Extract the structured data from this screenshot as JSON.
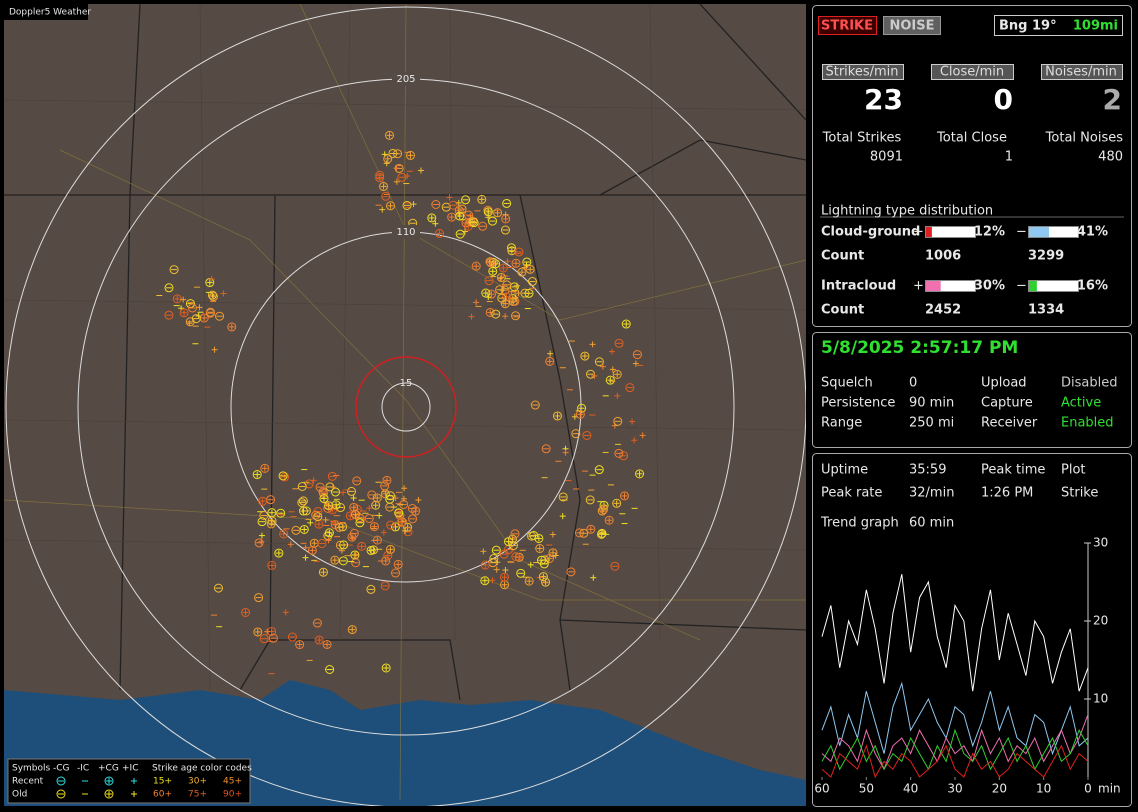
{
  "map": {
    "title": "Doppler5 Weather",
    "range_labels": [
      "205",
      "110",
      "15"
    ],
    "legend": {
      "symbols_label": "Symbols",
      "types": [
        "-CG",
        "-IC",
        "+CG",
        "+IC"
      ],
      "age_title": "Strike age color codes",
      "recent_label": "Recent",
      "old_label": "Old",
      "recent_ages": [
        "15+",
        "30+",
        "45+"
      ],
      "old_ages": [
        "60+",
        "75+",
        "90+"
      ]
    }
  },
  "status": {
    "strike": "STRIKE",
    "noise": "NOISE",
    "bearing": "Bng 19°",
    "distance": "109mi"
  },
  "rates": {
    "headers": [
      "Strikes/min",
      "Close/min",
      "Noises/min"
    ],
    "values": [
      23,
      0,
      2
    ],
    "total_labels": [
      "Total Strikes",
      "Total Close",
      "Total Noises"
    ],
    "totals": [
      8091,
      1,
      480
    ]
  },
  "distribution": {
    "title": "Lightning type distribution",
    "rows": [
      {
        "label": "Cloud-ground",
        "plus_sign": "+",
        "plus": 12,
        "plus_label": "12%",
        "plus_color": "#e02020",
        "minus_sign": "−",
        "minus": 41,
        "minus_label": "41%",
        "minus_color": "#8fc8f0",
        "count_label": "Count",
        "plus_count": 1006,
        "minus_count": 3299
      },
      {
        "label": "Intracloud",
        "plus_sign": "+",
        "plus": 30,
        "plus_label": "30%",
        "plus_color": "#f070b0",
        "minus_sign": "−",
        "minus": 16,
        "minus_label": "16%",
        "minus_color": "#30d030",
        "count_label": "Count",
        "plus_count": 2452,
        "minus_count": 1334
      }
    ]
  },
  "session": {
    "datetime": "5/8/2025 2:57:17 PM",
    "rows": [
      [
        "Squelch",
        "0",
        "Upload",
        "Disabled"
      ],
      [
        "Persistence",
        "90 min",
        "Capture",
        "Active"
      ],
      [
        "Range",
        "250 mi",
        "Receiver",
        "Enabled"
      ]
    ]
  },
  "stats": {
    "items": [
      {
        "label": "Uptime",
        "value": "35:59"
      },
      {
        "label": "Peak time",
        "value": "1:26 PM"
      },
      {
        "label": "Plot",
        "value": "Strike"
      },
      {
        "label": "Peak rate",
        "value": "32/min"
      },
      {
        "label": "Trend graph",
        "value": "60 min"
      }
    ]
  },
  "chart_data": {
    "type": "line",
    "x": [
      60,
      58,
      56,
      54,
      52,
      50,
      48,
      46,
      44,
      42,
      40,
      38,
      36,
      34,
      32,
      30,
      28,
      26,
      24,
      22,
      20,
      18,
      16,
      14,
      12,
      10,
      8,
      6,
      4,
      2,
      0
    ],
    "xlim": [
      60,
      0
    ],
    "xticks": [
      60,
      50,
      40,
      30,
      20,
      10,
      0
    ],
    "x_unit": "min",
    "ylim": [
      0,
      30
    ],
    "yticks": [
      10,
      20,
      30
    ],
    "series": [
      {
        "color": "#ffffff",
        "values": [
          18,
          22,
          14,
          20,
          17,
          24,
          19,
          12,
          21,
          26,
          16,
          23,
          25,
          18,
          14,
          22,
          20,
          11,
          19,
          24,
          15,
          21,
          17,
          13,
          20,
          18,
          12,
          16,
          19,
          11,
          14
        ]
      },
      {
        "color": "#8fc8f0",
        "values": [
          6,
          9,
          4,
          8,
          5,
          11,
          7,
          3,
          9,
          12,
          6,
          8,
          10,
          7,
          5,
          9,
          8,
          4,
          7,
          11,
          6,
          9,
          5,
          4,
          8,
          7,
          3,
          6,
          9,
          4,
          5
        ]
      },
      {
        "color": "#f070b0",
        "values": [
          3,
          2,
          5,
          4,
          2,
          6,
          3,
          1,
          4,
          5,
          3,
          6,
          4,
          2,
          5,
          3,
          4,
          2,
          6,
          3,
          5,
          2,
          4,
          3,
          5,
          2,
          4,
          6,
          3,
          5,
          8
        ]
      },
      {
        "color": "#30d030",
        "values": [
          2,
          4,
          1,
          3,
          5,
          2,
          4,
          1,
          3,
          2,
          5,
          3,
          1,
          4,
          2,
          6,
          3,
          2,
          4,
          1,
          3,
          5,
          2,
          4,
          1,
          3,
          5,
          2,
          3,
          6,
          4
        ]
      },
      {
        "color": "#e02020",
        "values": [
          1,
          0,
          3,
          2,
          1,
          4,
          0,
          2,
          1,
          3,
          2,
          0,
          1,
          2,
          4,
          1,
          0,
          3,
          1,
          2,
          0,
          1,
          3,
          2,
          1,
          0,
          2,
          4,
          1,
          3,
          2
        ]
      }
    ]
  }
}
